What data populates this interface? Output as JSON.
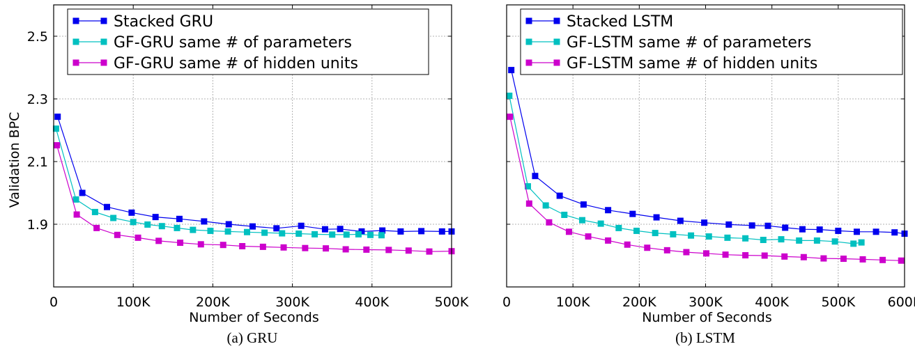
{
  "chart_data": [
    {
      "type": "line",
      "caption": "(a) GRU",
      "xlabel": "Number of Seconds",
      "ylabel": "Validation BPC",
      "xlim": [
        0,
        500000
      ],
      "ylim": [
        1.7,
        2.6
      ],
      "xticks": [
        0,
        100000,
        200000,
        300000,
        400000,
        500000
      ],
      "xtick_labels": [
        "0",
        "100K",
        "200K",
        "300K",
        "400K",
        "500K"
      ],
      "yticks": [
        1.9,
        2.1,
        2.3,
        2.5
      ],
      "ytick_labels": [
        "1.9",
        "2.1",
        "2.3",
        "2.5"
      ],
      "grid": true,
      "legend_position": "top",
      "series": [
        {
          "name": "Stacked GRU",
          "color": "#0000ee",
          "x": [
            5000,
            36000,
            67000,
            98000,
            128000,
            158000,
            189000,
            220000,
            250000,
            280000,
            311000,
            341000,
            360000,
            387000,
            413000,
            436000,
            462000,
            488000,
            500000
          ],
          "y": [
            2.243,
            2.0,
            1.955,
            1.937,
            1.923,
            1.917,
            1.909,
            1.9,
            1.893,
            1.887,
            1.895,
            1.884,
            1.885,
            1.877,
            1.88,
            1.877,
            1.878,
            1.877,
            1.877
          ]
        },
        {
          "name": "GF-GRU same # of parameters",
          "color": "#00c0c0",
          "x": [
            3000,
            28000,
            52000,
            75000,
            100000,
            118000,
            136000,
            155000,
            175000,
            197000,
            219000,
            243000,
            265000,
            287000,
            308000,
            328000,
            350000,
            368000,
            383000,
            398000,
            412000
          ],
          "y": [
            2.205,
            1.979,
            1.939,
            1.92,
            1.907,
            1.899,
            1.894,
            1.888,
            1.882,
            1.879,
            1.877,
            1.875,
            1.873,
            1.871,
            1.87,
            1.868,
            1.867,
            1.867,
            1.868,
            1.866,
            1.865
          ]
        },
        {
          "name": "GF-GRU same # of hidden units",
          "color": "#cc00cc",
          "x": [
            4000,
            29000,
            54000,
            80000,
            106000,
            132000,
            159000,
            185000,
            213000,
            237000,
            263000,
            289000,
            316000,
            342000,
            367000,
            393000,
            421000,
            446000,
            472000,
            500000
          ],
          "y": [
            2.152,
            1.931,
            1.888,
            1.866,
            1.857,
            1.847,
            1.841,
            1.836,
            1.834,
            1.83,
            1.828,
            1.826,
            1.824,
            1.823,
            1.82,
            1.819,
            1.818,
            1.816,
            1.813,
            1.814
          ]
        }
      ]
    },
    {
      "type": "line",
      "caption": "(b) LSTM",
      "xlabel": "Number of Seconds",
      "ylabel": "",
      "xlim": [
        0,
        600000
      ],
      "ylim": [
        1.7,
        2.6
      ],
      "xticks": [
        0,
        100000,
        200000,
        300000,
        400000,
        500000,
        600000
      ],
      "xtick_labels": [
        "0",
        "100K",
        "200K",
        "300K",
        "400K",
        "500K",
        "600K"
      ],
      "yticks": [
        1.9,
        2.1,
        2.3,
        2.5
      ],
      "ytick_labels": [],
      "grid": true,
      "legend_position": "top",
      "series": [
        {
          "name": "Stacked LSTM",
          "color": "#0000ee",
          "x": [
            7000,
            43000,
            80000,
            116000,
            153000,
            190000,
            226000,
            262000,
            298000,
            335000,
            370000,
            394000,
            420000,
            446000,
            472000,
            500000,
            528000,
            557000,
            585000,
            600000
          ],
          "y": [
            2.392,
            2.054,
            1.991,
            1.963,
            1.945,
            1.933,
            1.922,
            1.911,
            1.905,
            1.899,
            1.896,
            1.895,
            1.889,
            1.884,
            1.883,
            1.879,
            1.876,
            1.876,
            1.874,
            1.87
          ]
        },
        {
          "name": "GF-LSTM same # of parameters",
          "color": "#00c0c0",
          "x": [
            4000,
            32000,
            59000,
            87000,
            114000,
            142000,
            169000,
            196000,
            224000,
            251000,
            278000,
            305000,
            333000,
            360000,
            387000,
            414000,
            441000,
            468000,
            495000,
            523000,
            535000
          ],
          "y": [
            2.31,
            2.021,
            1.96,
            1.93,
            1.913,
            1.902,
            1.888,
            1.879,
            1.872,
            1.868,
            1.864,
            1.861,
            1.857,
            1.855,
            1.85,
            1.852,
            1.848,
            1.848,
            1.845,
            1.838,
            1.842
          ]
        },
        {
          "name": "GF-LSTM same # of hidden units",
          "color": "#cc00cc",
          "x": [
            5000,
            34000,
            64000,
            94000,
            123000,
            153000,
            182000,
            212000,
            242000,
            271000,
            301000,
            330000,
            360000,
            389000,
            419000,
            448000,
            478000,
            508000,
            537000,
            567000,
            595000
          ],
          "y": [
            2.243,
            1.966,
            1.906,
            1.876,
            1.861,
            1.848,
            1.835,
            1.825,
            1.817,
            1.811,
            1.807,
            1.803,
            1.801,
            1.8,
            1.797,
            1.795,
            1.791,
            1.79,
            1.788,
            1.786,
            1.784
          ]
        }
      ]
    }
  ]
}
